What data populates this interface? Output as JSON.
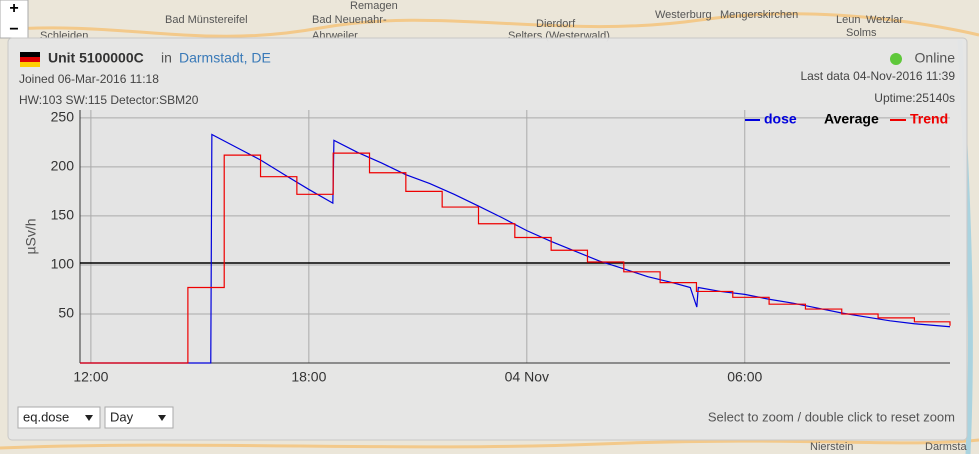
{
  "map": {
    "labels": [
      "Remagen",
      "Bad Münstereifel",
      "Bad Neuenahr-",
      "Ahrweiler",
      "Dierdorf",
      "Selters (Westerwald)",
      "Westerburg",
      "Mengerskirchen",
      "Leun",
      "Wetzlar",
      "Solms",
      "Schleiden",
      "Nierstein",
      "Darmsta"
    ],
    "zoom_in": "+",
    "zoom_out": "−"
  },
  "header": {
    "unit": "Unit 5100000C",
    "in": "in",
    "location": "Darmstadt, DE",
    "status": "Online",
    "joined": "Joined 06-Mar-2016 11:18",
    "last_data": "Last data 04-Nov-2016 11:39",
    "hardware": "HW:103 SW:115 Detector:SBM20",
    "uptime": "Uptime:25140s"
  },
  "controls": {
    "measure": "eq.dose",
    "period": "Day",
    "hint": "Select to zoom / double click to reset zoom"
  },
  "chart_data": {
    "type": "line",
    "ylabel": "µSv/h",
    "xlim": [
      11.7,
      35.65
    ],
    "ylim": [
      0,
      258
    ],
    "xticks": [
      {
        "value": 12,
        "label": "12:00"
      },
      {
        "value": 18,
        "label": "18:00"
      },
      {
        "value": 24,
        "label": "04 Nov"
      },
      {
        "value": 30,
        "label": "06:00"
      }
    ],
    "yticks": [
      50,
      100,
      150,
      200,
      250
    ],
    "grid": true,
    "series": [
      {
        "name": "dose",
        "color": "#0000dd",
        "x": [
          11.7,
          15.3,
          15.33,
          16,
          16.67,
          17.33,
          18,
          18.66,
          18.69,
          19.33,
          20,
          20.67,
          21.33,
          22,
          22.67,
          23.33,
          24,
          24.67,
          25.33,
          26,
          26.67,
          27.33,
          28,
          28.5,
          28.68,
          28.72,
          29.33,
          30,
          30.67,
          31.33,
          32,
          32.67,
          33.33,
          34,
          34.67,
          35.65
        ],
        "values": [
          0,
          0,
          233,
          220,
          207,
          192,
          177,
          163,
          227,
          215,
          204,
          192,
          183,
          172,
          160,
          148,
          135,
          124,
          114,
          104,
          96,
          88,
          82,
          77,
          57,
          77,
          73,
          70,
          65,
          61,
          56,
          51,
          47,
          43,
          40,
          37
        ]
      },
      {
        "name": "Trend",
        "color": "#ee0000",
        "step": true,
        "x": [
          11.7,
          14.67,
          15.67,
          16.67,
          17.67,
          18.67,
          19.67,
          20.67,
          21.67,
          22.67,
          23.67,
          24.67,
          25.67,
          26.67,
          27.67,
          28.67,
          29.67,
          30.67,
          31.67,
          32.67,
          33.67,
          34.67,
          35.65
        ],
        "values": [
          0,
          77,
          212,
          190,
          172,
          214,
          194,
          175,
          159,
          142,
          128,
          115,
          103,
          93,
          82,
          73,
          67,
          60,
          55,
          50,
          46,
          42,
          38
        ]
      }
    ],
    "average": {
      "name": "Average",
      "value": 102,
      "color": "#000000"
    }
  }
}
